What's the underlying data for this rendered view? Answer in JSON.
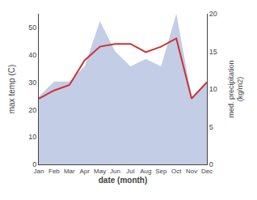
{
  "chart_data": {
    "type": "line",
    "categories": [
      "Jan",
      "Feb",
      "Mar",
      "Apr",
      "May",
      "Jun",
      "Jul",
      "Aug",
      "Sep",
      "Oct",
      "Nov",
      "Dec"
    ],
    "series": [
      {
        "type": "area",
        "axis": "y2",
        "color": "#b8c4e0",
        "values": [
          9,
          11,
          11,
          13,
          19,
          15,
          13,
          14,
          13,
          20,
          9,
          11
        ]
      },
      {
        "type": "line",
        "color": "#cc3333",
        "values": [
          24,
          27,
          29,
          38,
          43,
          44,
          44,
          41,
          43,
          46,
          24,
          30
        ]
      }
    ],
    "xlabel": "date (month)",
    "ylabel": "max temp (C)",
    "y2label": "med. precipitation\n(kg/m2)",
    "ylim": [
      0,
      55
    ],
    "yticks": [
      0,
      10,
      20,
      30,
      40,
      50
    ],
    "y2lim": [
      0,
      20
    ],
    "y2ticks": [
      0,
      5,
      10,
      15,
      20
    ],
    "grid": false
  }
}
